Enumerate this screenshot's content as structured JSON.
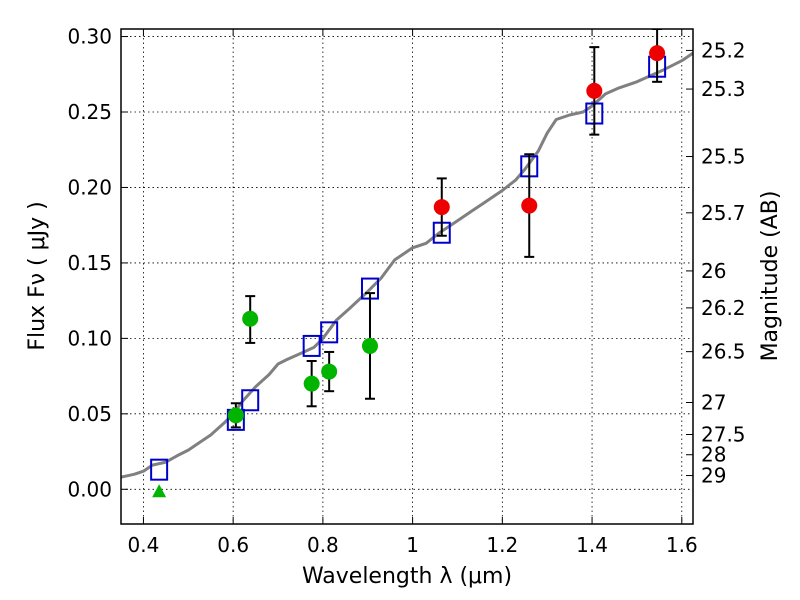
{
  "chart_data": {
    "type": "scatter",
    "xlabel": "Wavelength  λ (μm)",
    "ylabel": "Flux  Fν  ( μJy )",
    "ylabel_right": "Magnitude (AB)",
    "xlim": [
      0.35,
      1.625
    ],
    "ylim": [
      -0.023,
      0.305
    ],
    "grid": true,
    "x_ticks": [
      {
        "value": 0.4,
        "label": "0.4"
      },
      {
        "value": 0.6,
        "label": "0.6"
      },
      {
        "value": 0.8,
        "label": "0.8"
      },
      {
        "value": 1.0,
        "label": "1"
      },
      {
        "value": 1.2,
        "label": "1.2"
      },
      {
        "value": 1.4,
        "label": "1.4"
      },
      {
        "value": 1.6,
        "label": "1.6"
      }
    ],
    "y_ticks": [
      {
        "value": 0.0,
        "label": "0.00"
      },
      {
        "value": 0.05,
        "label": "0.05"
      },
      {
        "value": 0.1,
        "label": "0.10"
      },
      {
        "value": 0.15,
        "label": "0.15"
      },
      {
        "value": 0.2,
        "label": "0.20"
      },
      {
        "value": 0.25,
        "label": "0.25"
      },
      {
        "value": 0.3,
        "label": "0.30"
      }
    ],
    "right_ticks": [
      {
        "flux": 0.2908,
        "label": "25.2"
      },
      {
        "flux": 0.2652,
        "label": "25.3"
      },
      {
        "flux": 0.2205,
        "label": "25.5"
      },
      {
        "flux": 0.1832,
        "label": "25.7"
      },
      {
        "flux": 0.1447,
        "label": "26"
      },
      {
        "flux": 0.1202,
        "label": "26.2"
      },
      {
        "flux": 0.0912,
        "label": "26.5"
      },
      {
        "flux": 0.0575,
        "label": "27"
      },
      {
        "flux": 0.0363,
        "label": "27.5"
      },
      {
        "flux": 0.0229,
        "label": "28"
      },
      {
        "flux": 0.0091,
        "label": "29"
      }
    ],
    "series": [
      {
        "role": "model_spectrum",
        "color": "#808080",
        "style": "line",
        "x": [
          0.35,
          0.38,
          0.4,
          0.42,
          0.45,
          0.48,
          0.5,
          0.52,
          0.55,
          0.58,
          0.6,
          0.62,
          0.65,
          0.68,
          0.7,
          0.72,
          0.75,
          0.78,
          0.8,
          0.83,
          0.86,
          0.9,
          0.93,
          0.96,
          1.0,
          1.03,
          1.06,
          1.1,
          1.13,
          1.16,
          1.2,
          1.23,
          1.25,
          1.28,
          1.3,
          1.32,
          1.35,
          1.38,
          1.4,
          1.43,
          1.46,
          1.5,
          1.53,
          1.56,
          1.6,
          1.625
        ],
        "y": [
          0.008,
          0.01,
          0.012,
          0.016,
          0.018,
          0.023,
          0.026,
          0.03,
          0.036,
          0.044,
          0.05,
          0.058,
          0.068,
          0.076,
          0.083,
          0.086,
          0.09,
          0.094,
          0.1,
          0.112,
          0.12,
          0.131,
          0.14,
          0.152,
          0.16,
          0.163,
          0.17,
          0.178,
          0.184,
          0.19,
          0.198,
          0.205,
          0.212,
          0.224,
          0.236,
          0.245,
          0.248,
          0.25,
          0.254,
          0.262,
          0.266,
          0.27,
          0.274,
          0.278,
          0.284,
          0.289
        ]
      },
      {
        "role": "model_synthetic_photometry",
        "color": "#0000cc",
        "marker": "open-square",
        "points": [
          {
            "x": 0.435,
            "y": 0.013
          },
          {
            "x": 0.606,
            "y": 0.046
          },
          {
            "x": 0.638,
            "y": 0.059
          },
          {
            "x": 0.775,
            "y": 0.095
          },
          {
            "x": 0.814,
            "y": 0.104
          },
          {
            "x": 0.905,
            "y": 0.133
          },
          {
            "x": 1.065,
            "y": 0.17
          },
          {
            "x": 1.26,
            "y": 0.214
          },
          {
            "x": 1.405,
            "y": 0.249
          },
          {
            "x": 1.545,
            "y": 0.28
          }
        ]
      },
      {
        "role": "observed_optical",
        "color": "#00b400",
        "marker": "filled-circle",
        "points": [
          {
            "x": 0.606,
            "y": 0.049,
            "err_lo": 0.041,
            "err_hi": 0.057
          },
          {
            "x": 0.638,
            "y": 0.113,
            "err_lo": 0.097,
            "err_hi": 0.128
          },
          {
            "x": 0.775,
            "y": 0.07,
            "err_lo": 0.055,
            "err_hi": 0.085
          },
          {
            "x": 0.814,
            "y": 0.078,
            "err_lo": 0.065,
            "err_hi": 0.091
          },
          {
            "x": 0.905,
            "y": 0.095,
            "err_lo": 0.06,
            "err_hi": 0.13
          }
        ]
      },
      {
        "role": "observed_upper_limit",
        "color": "#00b400",
        "marker": "triangle-up",
        "points": [
          {
            "x": 0.435,
            "y": -0.002
          }
        ]
      },
      {
        "role": "observed_near_ir",
        "color": "#ee0000",
        "marker": "filled-circle",
        "points": [
          {
            "x": 1.065,
            "y": 0.187,
            "err_lo": 0.168,
            "err_hi": 0.206
          },
          {
            "x": 1.26,
            "y": 0.188,
            "err_lo": 0.154,
            "err_hi": 0.222
          },
          {
            "x": 1.405,
            "y": 0.264,
            "err_lo": 0.235,
            "err_hi": 0.293
          },
          {
            "x": 1.545,
            "y": 0.289,
            "err_lo": 0.27,
            "err_hi": 0.305
          }
        ]
      }
    ]
  }
}
